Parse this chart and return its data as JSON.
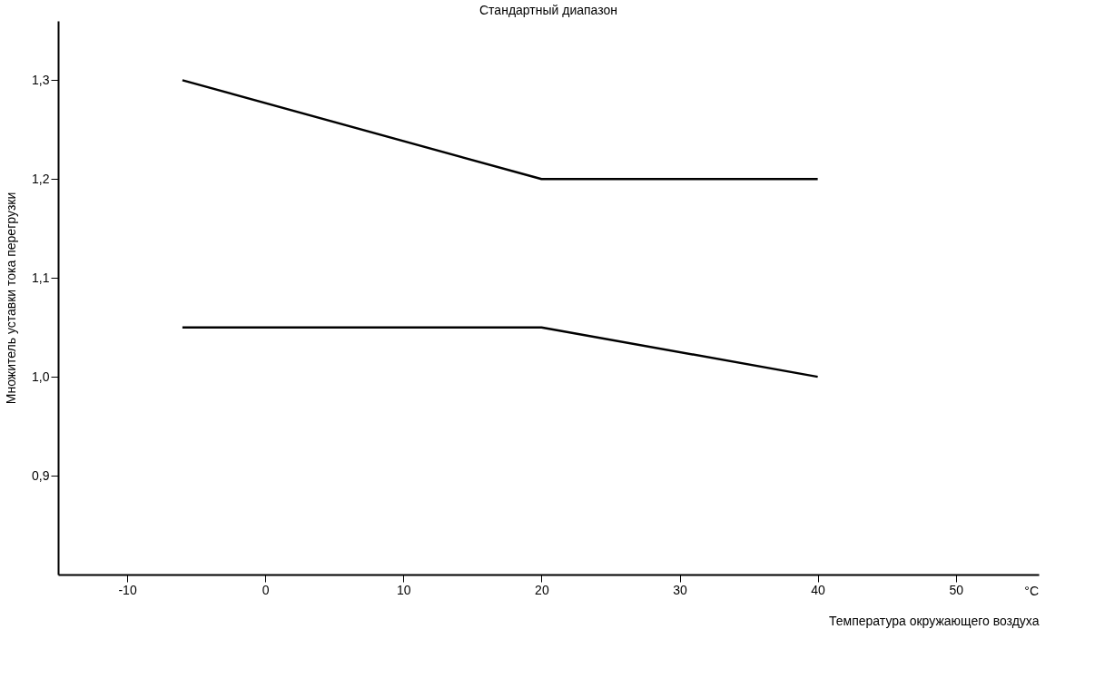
{
  "chart_data": {
    "type": "line",
    "title": "Стандартный диапазон",
    "xlabel": "Температура окружающего воздуха",
    "ylabel": "Множитель уставки тока перегрузки",
    "annotations": [
      "°C"
    ],
    "series": [
      {
        "color": "#000000",
        "x": [
          -6,
          20,
          40
        ],
        "values": [
          1.3,
          1.2,
          1.2
        ]
      },
      {
        "color": "#000000",
        "x": [
          -6,
          20,
          40
        ],
        "values": [
          1.05,
          1.05,
          1.0
        ]
      }
    ],
    "xlim": [
      -15,
      56
    ],
    "xticks": [
      -10,
      0,
      10,
      20,
      30,
      40,
      50
    ],
    "ylim": [
      0.8,
      1.36
    ],
    "yticks": [
      {
        "value": 0.9,
        "label": "0,9"
      },
      {
        "value": 1.0,
        "label": "1,0"
      },
      {
        "value": 1.1,
        "label": "1,1"
      },
      {
        "value": 1.2,
        "label": "1,2"
      },
      {
        "value": 1.3,
        "label": "1,3"
      }
    ],
    "grid": false,
    "legend": false,
    "marker": "none",
    "line_style": "solid"
  }
}
